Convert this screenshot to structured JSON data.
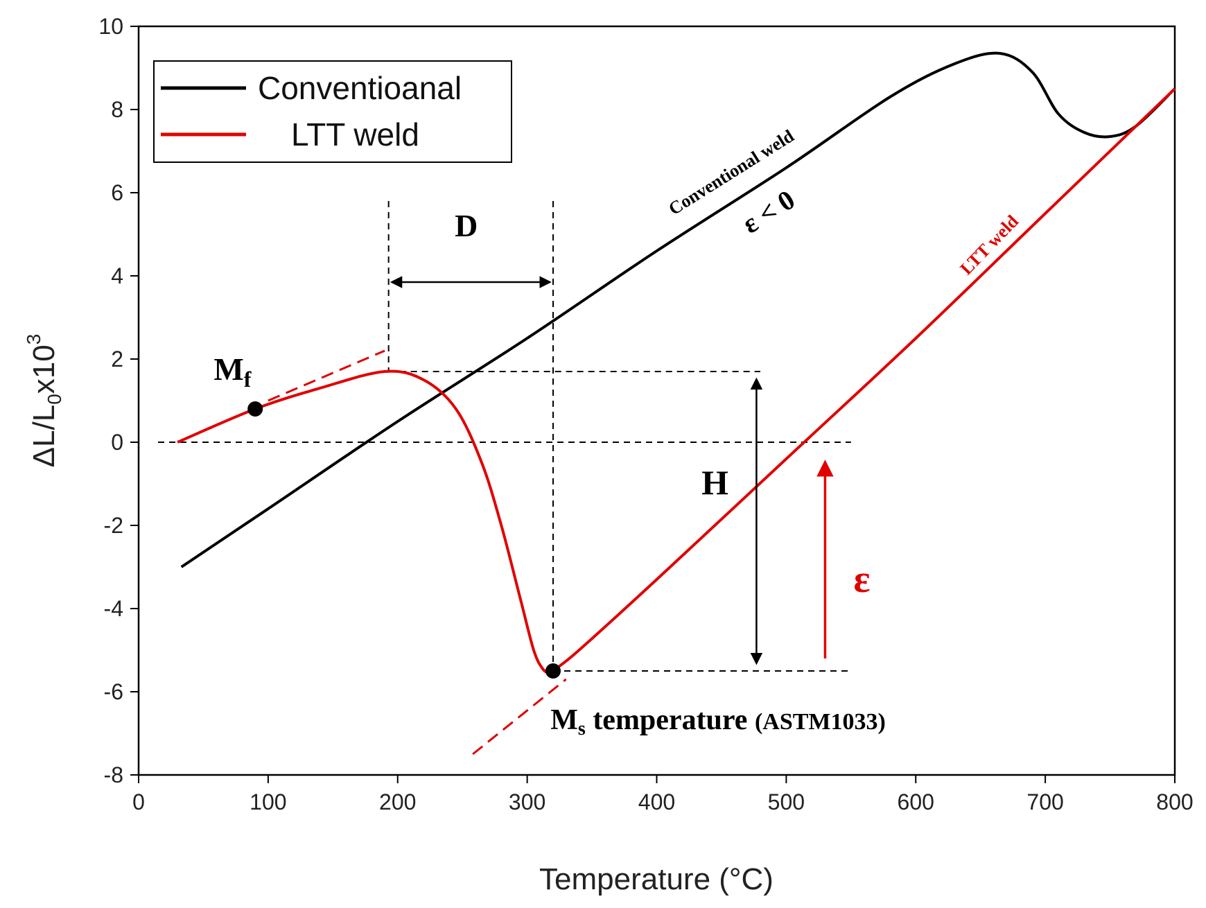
{
  "chart_data": {
    "type": "line",
    "title": "",
    "xlabel": "Temperature (°C)",
    "ylabel_main": "ΔL/L",
    "ylabel_sub": "0",
    "ylabel_mid": "x10",
    "ylabel_sup": "3",
    "xlim": [
      0,
      800
    ],
    "ylim": [
      -8,
      10
    ],
    "x_ticks": [
      0,
      100,
      200,
      300,
      400,
      500,
      600,
      700,
      800
    ],
    "y_ticks": [
      -8,
      -6,
      -4,
      -2,
      0,
      2,
      4,
      6,
      8,
      10
    ],
    "x_tick_labels": [
      "0",
      "100",
      "200",
      "300",
      "400",
      "500",
      "600",
      "700",
      "800"
    ],
    "y_tick_labels": [
      "-8",
      "-6",
      "-4",
      "-2",
      "0",
      "2",
      "4",
      "6",
      "8",
      "10"
    ],
    "legend": [
      {
        "label": "Conventioanal",
        "color": "#000000"
      },
      {
        "label": "LTT weld",
        "color": "#e00000"
      }
    ],
    "series": [
      {
        "name": "Conventioanal",
        "color": "#000000",
        "x": [
          33,
          100,
          200,
          300,
          400,
          500,
          580,
          630,
          665,
          690,
          710,
          730,
          750,
          770,
          800
        ],
        "y": [
          -3.0,
          -1.6,
          0.5,
          2.5,
          4.6,
          6.6,
          8.3,
          9.1,
          9.35,
          8.9,
          7.9,
          7.45,
          7.35,
          7.6,
          8.5
        ]
      },
      {
        "name": "LTT weld",
        "color": "#e00000",
        "x": [
          30,
          90,
          140,
          190,
          220,
          245,
          265,
          280,
          295,
          305,
          312,
          318,
          322,
          340,
          400,
          500,
          600,
          700,
          800
        ],
        "y": [
          0.0,
          0.8,
          1.3,
          1.7,
          1.5,
          0.8,
          -0.5,
          -2.0,
          -3.8,
          -5.0,
          -5.45,
          -5.55,
          -5.45,
          -5.0,
          -3.3,
          -0.4,
          2.5,
          5.5,
          8.5
        ]
      }
    ],
    "annotations": {
      "mf_label": "M",
      "mf_sub": "f",
      "ms_label": "M",
      "ms_sub": "s",
      "ms_text": " temperature ",
      "ms_paren": "(ASTM1033)",
      "d_label": "D",
      "h_label": "H",
      "eps_label": "ε",
      "eps_lt0": "ε < 0",
      "conv_curve_label": "Conventional  weld",
      "ltt_curve_label": "LTT weld"
    },
    "markers": [
      {
        "name": "Mf",
        "x": 90,
        "y": 0.8
      },
      {
        "name": "Ms",
        "x": 320,
        "y": -5.5
      }
    ]
  }
}
